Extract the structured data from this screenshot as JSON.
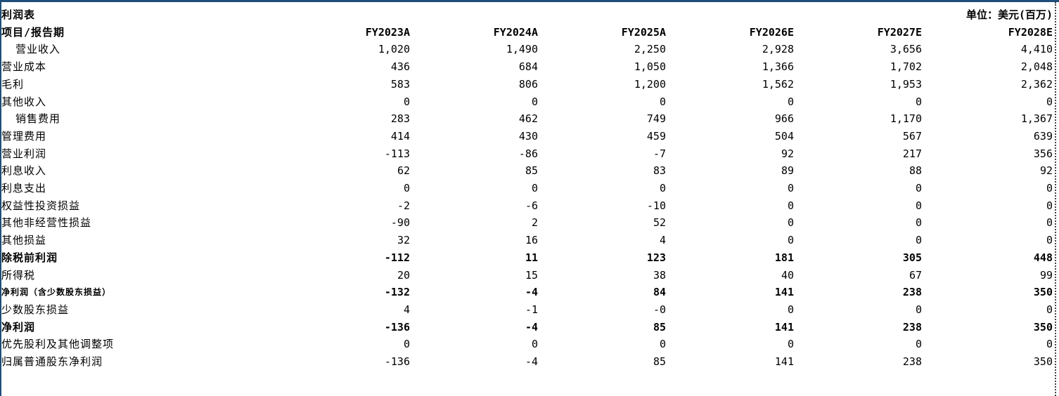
{
  "title": "利润表",
  "unit": "单位：美元(百万)",
  "header_label": "项目/报告期",
  "periods": [
    "FY2023A",
    "FY2024A",
    "FY2025A",
    "FY2026E",
    "FY2027E",
    "FY2028E"
  ],
  "rows": [
    {
      "label": "营业收入",
      "values": [
        "1,020",
        "1,490",
        "2,250",
        "2,928",
        "3,656",
        "4,410"
      ]
    },
    {
      "label": "营业成本",
      "values": [
        "436",
        "684",
        "1,050",
        "1,366",
        "1,702",
        "2,048"
      ]
    },
    {
      "label": "毛利",
      "values": [
        "583",
        "806",
        "1,200",
        "1,562",
        "1,953",
        "2,362"
      ]
    },
    {
      "label": "其他收入",
      "values": [
        "0",
        "0",
        "0",
        "0",
        "0",
        "0"
      ]
    },
    {
      "label": "销售费用",
      "values": [
        "283",
        "462",
        "749",
        "966",
        "1,170",
        "1,367"
      ]
    },
    {
      "label": "管理费用",
      "values": [
        "414",
        "430",
        "459",
        "504",
        "567",
        "639"
      ]
    },
    {
      "label": "营业利润",
      "values": [
        "-113",
        "-86",
        "-7",
        "92",
        "217",
        "356"
      ]
    },
    {
      "label": "利息收入",
      "values": [
        "62",
        "85",
        "83",
        "89",
        "88",
        "92"
      ]
    },
    {
      "label": "利息支出",
      "values": [
        "0",
        "0",
        "0",
        "0",
        "0",
        "0"
      ]
    },
    {
      "label": "权益性投资损益",
      "values": [
        "-2",
        "-6",
        "-10",
        "0",
        "0",
        "0"
      ]
    },
    {
      "label": "其他非经营性损益",
      "values": [
        "-90",
        "2",
        "52",
        "0",
        "0",
        "0"
      ]
    },
    {
      "label": "其他损益",
      "values": [
        "32",
        "16",
        "4",
        "0",
        "0",
        "0"
      ]
    },
    {
      "label": "除税前利润",
      "values": [
        "-112",
        "11",
        "123",
        "181",
        "305",
        "448"
      ]
    },
    {
      "label": "所得税",
      "values": [
        "20",
        "15",
        "38",
        "40",
        "67",
        "99"
      ]
    },
    {
      "label": "净利润（含少数股东损益）",
      "values": [
        "-132",
        "-4",
        "84",
        "141",
        "238",
        "350"
      ]
    },
    {
      "label": "少数股东损益",
      "values": [
        "4",
        "-1",
        "-0",
        "0",
        "0",
        "0"
      ]
    },
    {
      "label": "净利润",
      "values": [
        "-136",
        "-4",
        "85",
        "141",
        "238",
        "350"
      ]
    },
    {
      "label": "优先股利及其他调整项",
      "values": [
        "0",
        "0",
        "0",
        "0",
        "0",
        "0"
      ]
    },
    {
      "label": "归属普通股东净利润",
      "values": [
        "-136",
        "-4",
        "85",
        "141",
        "238",
        "350"
      ]
    }
  ]
}
